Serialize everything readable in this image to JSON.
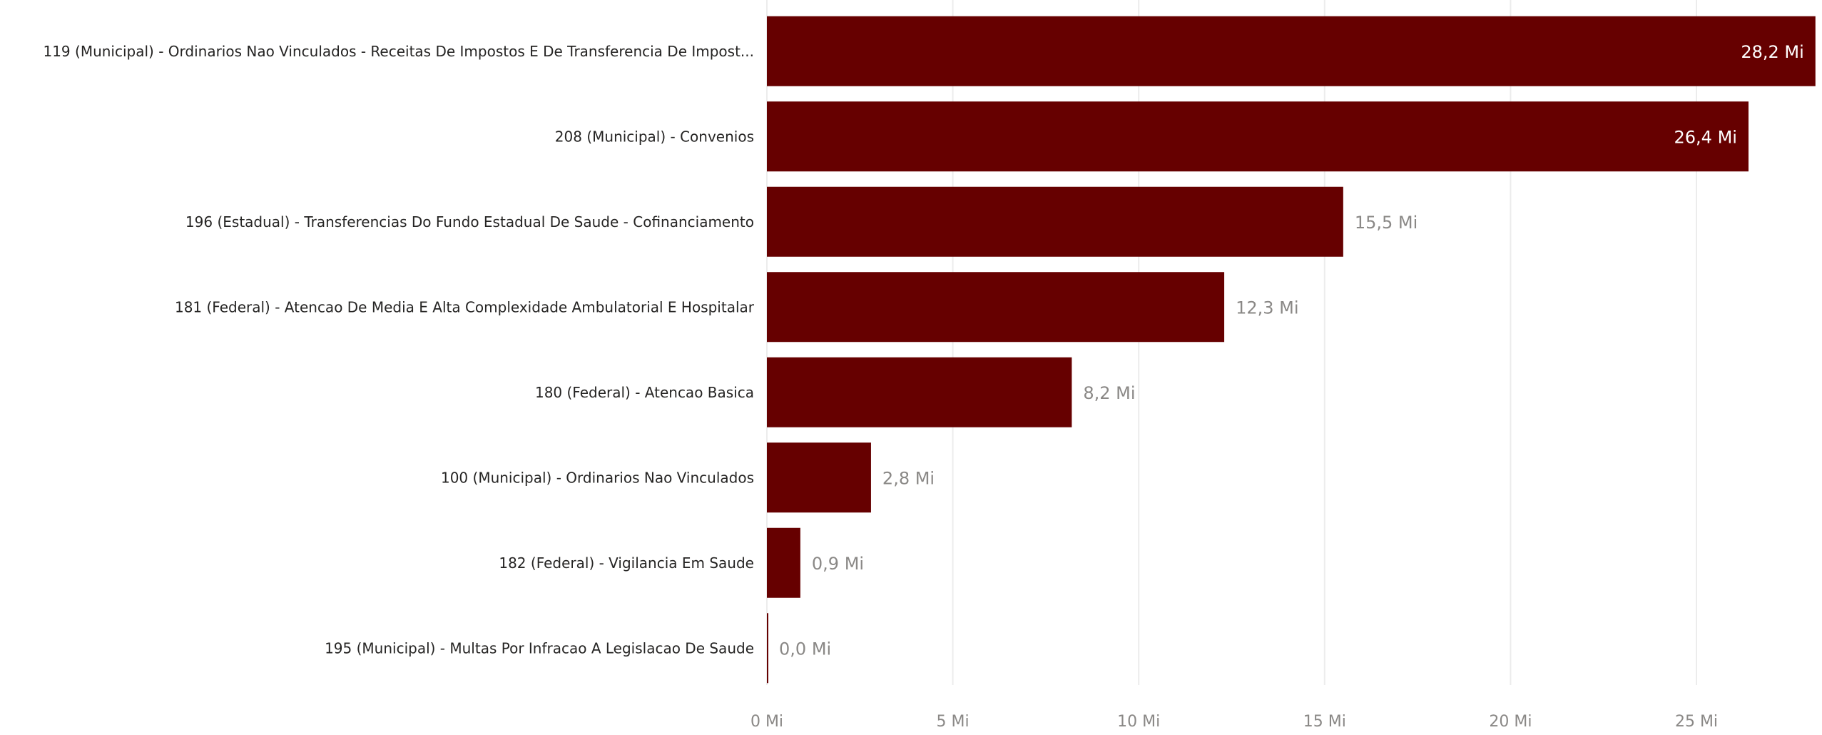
{
  "chart_data": {
    "type": "bar",
    "orientation": "horizontal",
    "title": "",
    "xlabel": "",
    "ylabel": "",
    "categories": [
      "119 (Municipal) - Ordinarios Nao Vinculados - Receitas De Impostos E De Transferencia De Impost...",
      "208 (Municipal) - Convenios",
      "196 (Estadual) - Transferencias Do Fundo Estadual De Saude - Cofinanciamento",
      "181 (Federal) - Atencao De Media E Alta Complexidade Ambulatorial E Hospitalar",
      "180 (Federal) - Atencao Basica",
      "100 (Municipal) - Ordinarios Nao Vinculados",
      "182 (Federal) - Vigilancia Em Saude",
      "195 (Municipal) - Multas Por Infracao A Legislacao De Saude"
    ],
    "values": [
      28.2,
      26.4,
      15.5,
      12.3,
      8.2,
      2.8,
      0.9,
      0.02
    ],
    "value_labels": [
      "28,2 Mi",
      "26,4 Mi",
      "15,5 Mi",
      "12,3 Mi",
      "8,2 Mi",
      "2,8 Mi",
      "0,9 Mi",
      "0,0 Mi"
    ],
    "xlim": [
      0,
      28.3
    ],
    "ticks": [
      0,
      5,
      10,
      15,
      20,
      25
    ],
    "tick_labels": [
      "0 Mi",
      "5 Mi",
      "10 Mi",
      "15 Mi",
      "20 Mi",
      "25 Mi"
    ],
    "grid": true,
    "legend": "none",
    "bar_color": "#660000"
  }
}
